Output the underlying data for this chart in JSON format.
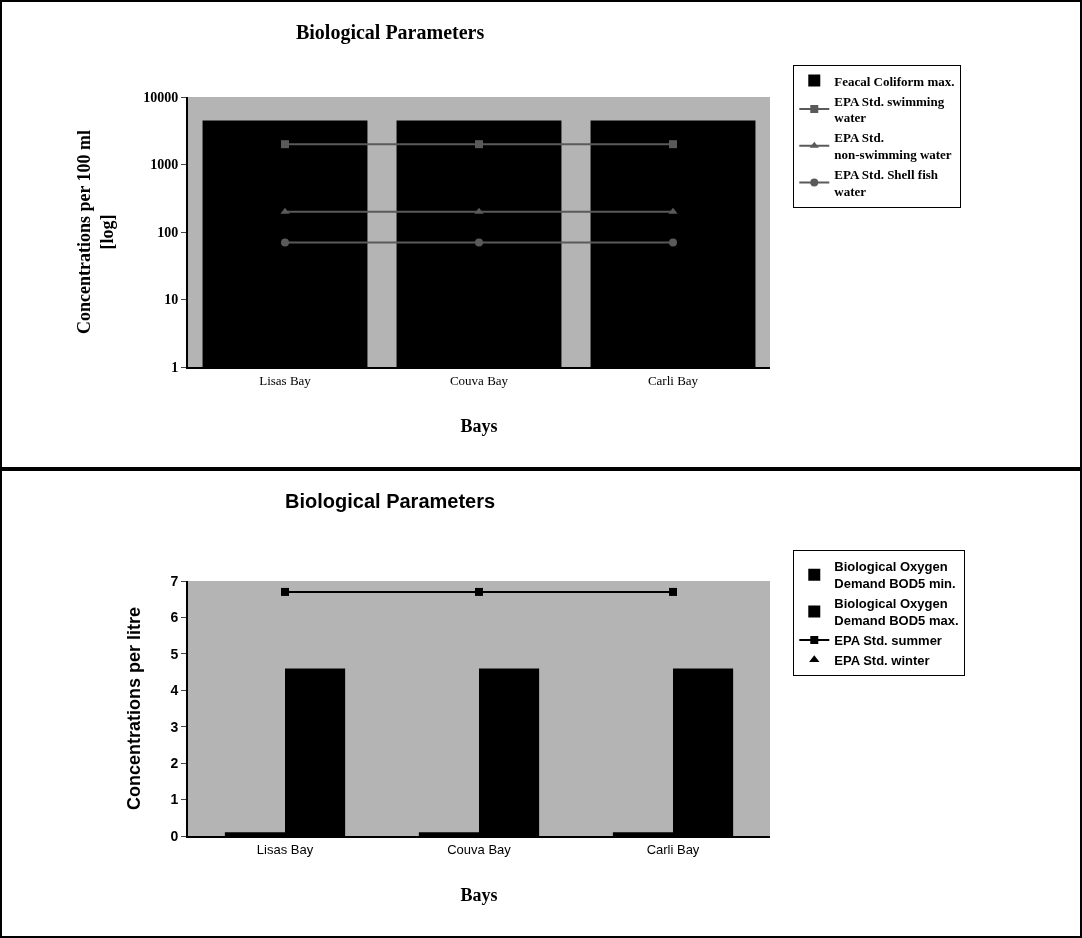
{
  "chart_data": [
    {
      "type": "bar",
      "title": "Biological Parameters",
      "xlabel": "Bays",
      "ylabel": "Concentrations per 100 ml [log]",
      "categories": [
        "Lisas Bay",
        "Couva Bay",
        "Carli Bay"
      ],
      "log": true,
      "ylim": [
        1,
        10000
      ],
      "yticks": [
        1,
        10,
        100,
        1000,
        10000
      ],
      "grid": false,
      "legend": "right",
      "series": [
        {
          "name": "Feacal Coliform max.",
          "color": "#000000",
          "values": [
            4500,
            4500,
            4500
          ]
        },
        {
          "name": "EPA Std. swimming water",
          "type": "line",
          "marker": "square",
          "color": "#5a5a5a",
          "values": [
            2000,
            2000,
            2000
          ]
        },
        {
          "name": "EPA Std. non-swimming water",
          "type": "line",
          "marker": "triangle",
          "color": "#5a5a5a",
          "values": [
            200,
            200,
            200
          ]
        },
        {
          "name": "EPA Std. Shell fish water",
          "type": "line",
          "marker": "circle",
          "color": "#5a5a5a",
          "values": [
            70,
            70,
            70
          ]
        }
      ]
    },
    {
      "type": "bar",
      "title": "Biological Parameters",
      "xlabel": "Bays",
      "ylabel": "Concentrations per litre",
      "categories": [
        "Lisas Bay",
        "Couva Bay",
        "Carli Bay"
      ],
      "ylim": [
        0,
        7
      ],
      "yticks": [
        0,
        1,
        2,
        3,
        4,
        5,
        6,
        7
      ],
      "grid": false,
      "legend": "right",
      "series": [
        {
          "name": "Biological Oxygen Demand BOD5 min.",
          "color": "#000000",
          "values": [
            0.1,
            0.1,
            0.1
          ]
        },
        {
          "name": "Biological Oxygen Demand BOD5 max.",
          "color": "#000000",
          "values": [
            4.6,
            4.6,
            4.6
          ]
        },
        {
          "name": "EPA Std. summer",
          "type": "line",
          "marker": "square",
          "color": "#000000",
          "values": [
            6.7,
            6.7,
            6.7
          ]
        },
        {
          "name": "EPA Std. winter",
          "type": "scatter",
          "marker": "triangle",
          "color": "#000000",
          "values": [
            null,
            null,
            null
          ]
        }
      ]
    }
  ]
}
